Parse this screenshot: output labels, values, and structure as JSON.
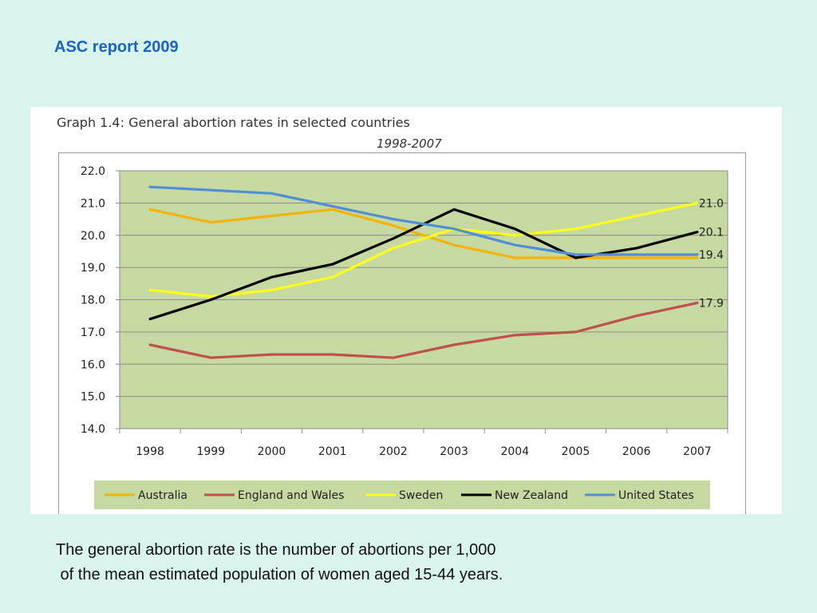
{
  "slide": {
    "title": "ASC report 2009",
    "caption_line1": "The general abortion rate is the number of abortions per 1,000",
    "caption_line2": " of the mean estimated population of women aged 15-44 years."
  },
  "colors": {
    "background": "#d9f3ee",
    "plot_area": "#c5d9a0",
    "title": "#1a63c9",
    "legend_bg": "#c5d9a0"
  },
  "chart_data": {
    "type": "line",
    "title": "Graph 1.4: General abortion rates in selected countries",
    "subtitle": "1998-2007",
    "categories": [
      "1998",
      "1999",
      "2000",
      "2001",
      "2002",
      "2003",
      "2004",
      "2005",
      "2006",
      "2007"
    ],
    "ylim": [
      14.0,
      22.0
    ],
    "yticks": [
      "14.0",
      "15.0",
      "16.0",
      "17.0",
      "18.0",
      "19.0",
      "20.0",
      "21.0",
      "22.0"
    ],
    "grid": true,
    "legend_position": "bottom",
    "series": [
      {
        "name": "Australia",
        "color": "#f5b301",
        "values": [
          20.8,
          20.4,
          20.6,
          20.8,
          20.3,
          19.7,
          19.3,
          19.3,
          19.3,
          19.3
        ],
        "end_label": ""
      },
      {
        "name": "England and Wales",
        "color": "#c0504d",
        "values": [
          16.6,
          16.2,
          16.3,
          16.3,
          16.2,
          16.6,
          16.9,
          17.0,
          17.5,
          17.9
        ],
        "end_label": "17.9"
      },
      {
        "name": "Sweden",
        "color": "#ffff1a",
        "values": [
          18.3,
          18.1,
          18.3,
          18.7,
          19.6,
          20.2,
          20.0,
          20.2,
          20.6,
          21.0
        ],
        "end_label": "21.0"
      },
      {
        "name": "New Zealand",
        "color": "#000000",
        "values": [
          17.4,
          18.0,
          18.7,
          19.1,
          19.9,
          20.8,
          20.2,
          19.3,
          19.6,
          20.1
        ],
        "end_label": "20.1"
      },
      {
        "name": "United States",
        "color": "#4f8fd6",
        "values": [
          21.5,
          21.4,
          21.3,
          20.9,
          20.5,
          20.2,
          19.7,
          19.4,
          19.4,
          19.4
        ],
        "end_label": "19.4"
      }
    ]
  }
}
